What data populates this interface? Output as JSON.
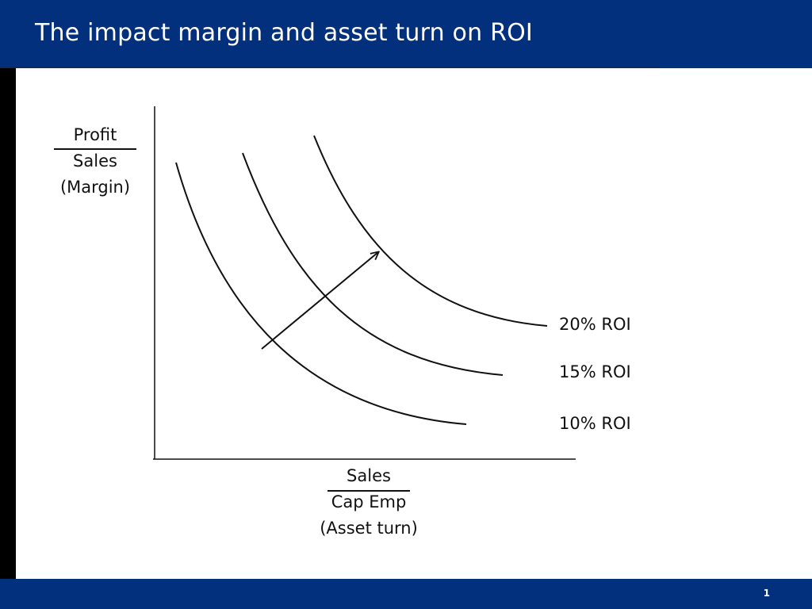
{
  "slide": {
    "title": "The impact margin and asset turn on ROI",
    "page_number": "1"
  },
  "y_axis": {
    "numerator": "Profit",
    "denominator": "Sales",
    "caption": "(Margin)"
  },
  "x_axis": {
    "numerator": "Sales",
    "denominator": "Cap Emp",
    "caption": "(Asset turn)"
  },
  "curves": [
    {
      "label": "10% ROI"
    },
    {
      "label": "15% ROI"
    },
    {
      "label": "20% ROI"
    }
  ],
  "colors": {
    "header": "#02307c",
    "footer": "#02307c",
    "left_bar": "#000000",
    "ink": "#111111"
  }
}
